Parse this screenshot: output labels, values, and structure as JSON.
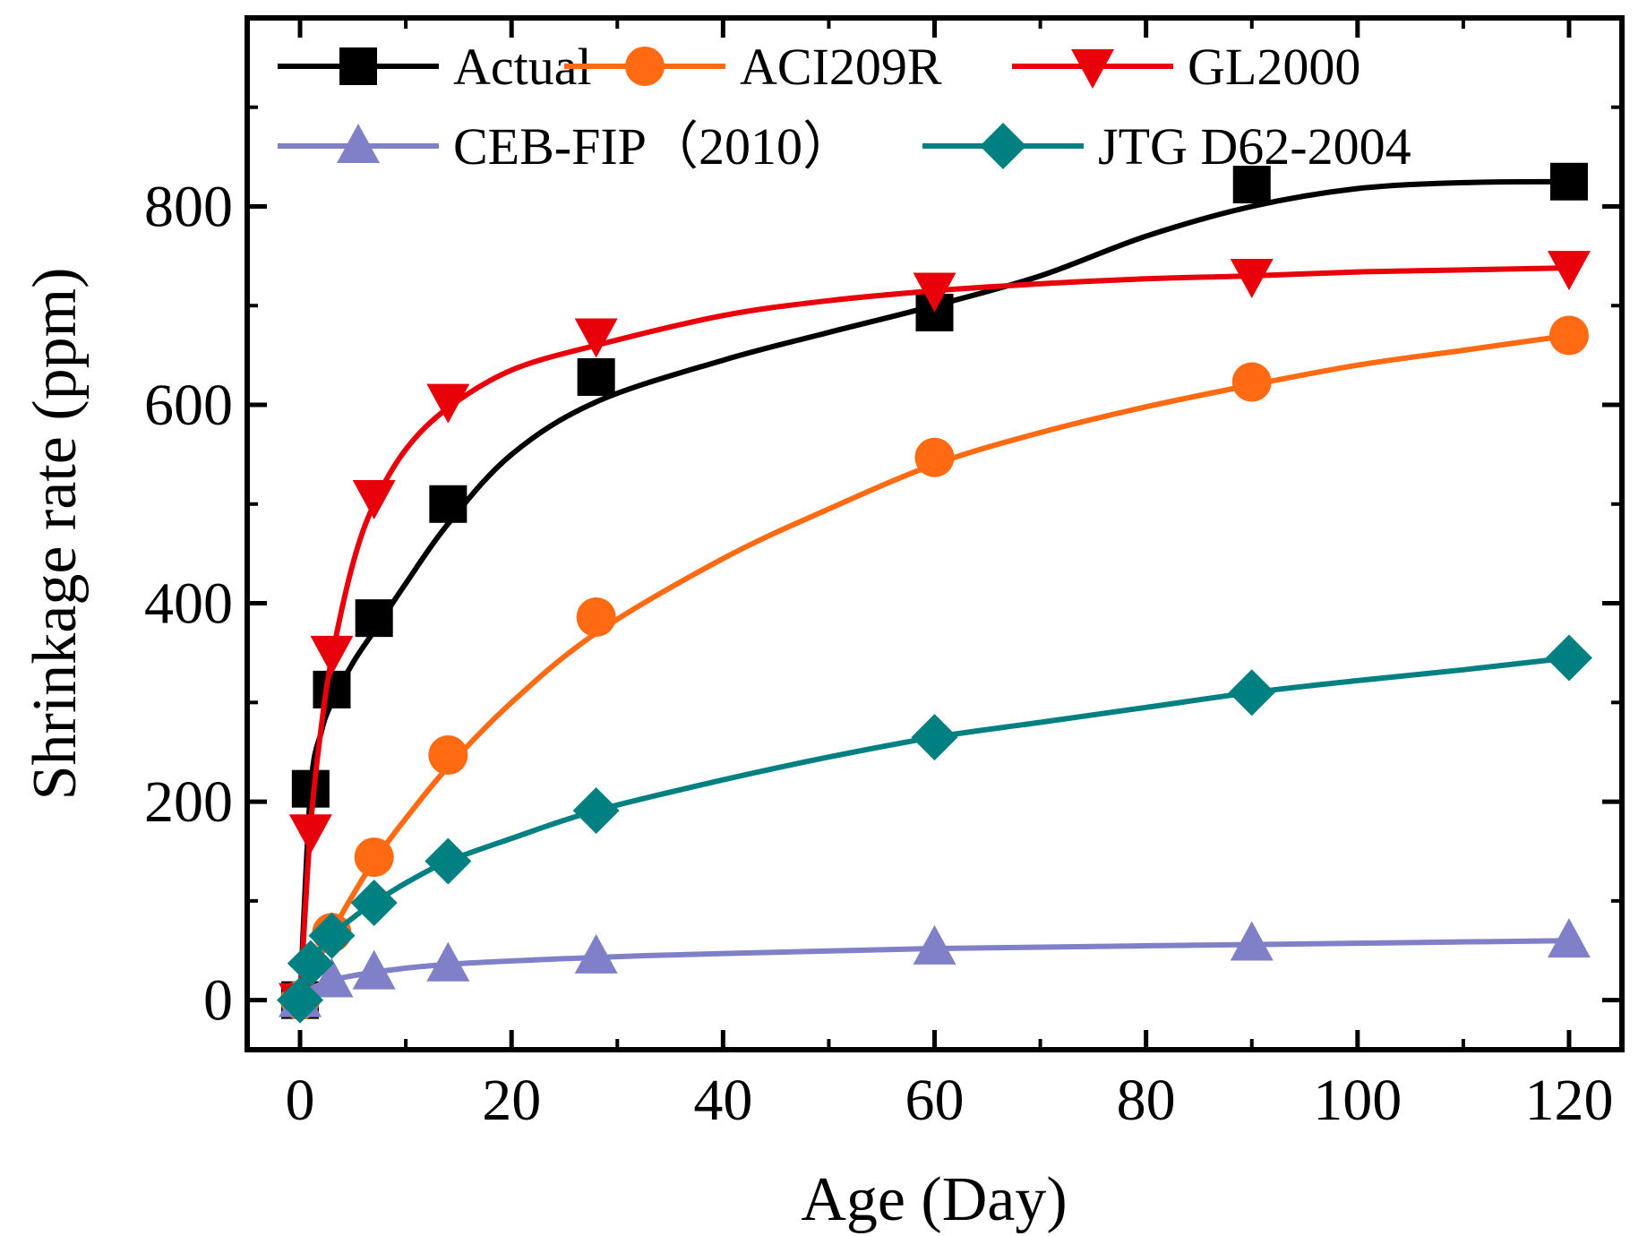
{
  "chart_data": {
    "type": "line",
    "xlabel": "Age (Day)",
    "ylabel": "Shrinkage rate (ppm)",
    "xlim": [
      -5,
      125
    ],
    "ylim": [
      -50,
      990
    ],
    "x_ticks": [
      0,
      20,
      40,
      60,
      80,
      100,
      120
    ],
    "y_ticks": [
      0,
      200,
      400,
      600,
      800
    ],
    "x_tick_labels": [
      "0",
      "20",
      "40",
      "60",
      "80",
      "100",
      "120"
    ],
    "y_tick_labels": [
      "0",
      "200",
      "400",
      "600",
      "800"
    ],
    "grid": false,
    "legend_position": "top-left",
    "series": [
      {
        "name": "Actual",
        "color": "#000000",
        "marker": "square",
        "points": [
          [
            0,
            0
          ],
          [
            1,
            213
          ],
          [
            3,
            313
          ],
          [
            7,
            385
          ],
          [
            14,
            500
          ],
          [
            28,
            628
          ],
          [
            60,
            693
          ],
          [
            90,
            822
          ],
          [
            120,
            825
          ]
        ],
        "curve": [
          [
            0,
            0
          ],
          [
            1,
            212
          ],
          [
            2,
            270
          ],
          [
            3,
            300
          ],
          [
            5,
            340
          ],
          [
            7,
            372
          ],
          [
            10,
            420
          ],
          [
            14,
            480
          ],
          [
            20,
            550
          ],
          [
            28,
            603
          ],
          [
            40,
            645
          ],
          [
            50,
            673
          ],
          [
            60,
            700
          ],
          [
            70,
            730
          ],
          [
            80,
            770
          ],
          [
            90,
            800
          ],
          [
            100,
            818
          ],
          [
            110,
            824
          ],
          [
            120,
            825
          ]
        ]
      },
      {
        "name": "ACI209R",
        "color": "#FF6A13",
        "marker": "circle",
        "points": [
          [
            0,
            0
          ],
          [
            3,
            68
          ],
          [
            7,
            144
          ],
          [
            14,
            247
          ],
          [
            28,
            386
          ],
          [
            60,
            547
          ],
          [
            90,
            623
          ],
          [
            120,
            670
          ]
        ],
        "curve": [
          [
            0,
            0
          ],
          [
            1,
            23
          ],
          [
            3,
            68
          ],
          [
            5,
            106
          ],
          [
            7,
            140
          ],
          [
            10,
            183
          ],
          [
            14,
            235
          ],
          [
            20,
            300
          ],
          [
            28,
            370
          ],
          [
            40,
            445
          ],
          [
            50,
            495
          ],
          [
            60,
            540
          ],
          [
            70,
            572
          ],
          [
            80,
            598
          ],
          [
            90,
            620
          ],
          [
            100,
            640
          ],
          [
            110,
            655
          ],
          [
            120,
            670
          ]
        ]
      },
      {
        "name": "GL2000",
        "color": "#E8000B",
        "marker": "triangle-down",
        "points": [
          [
            0,
            0
          ],
          [
            1,
            170
          ],
          [
            3,
            350
          ],
          [
            7,
            507
          ],
          [
            14,
            604
          ],
          [
            28,
            670
          ],
          [
            60,
            716
          ],
          [
            90,
            730
          ],
          [
            120,
            738
          ]
        ],
        "curve": [
          [
            0,
            0
          ],
          [
            1,
            175
          ],
          [
            2,
            275
          ],
          [
            3,
            345
          ],
          [
            5,
            440
          ],
          [
            7,
            500
          ],
          [
            10,
            555
          ],
          [
            14,
            597
          ],
          [
            20,
            635
          ],
          [
            28,
            660
          ],
          [
            40,
            690
          ],
          [
            50,
            705
          ],
          [
            60,
            715
          ],
          [
            70,
            722
          ],
          [
            80,
            727
          ],
          [
            90,
            730
          ],
          [
            100,
            734
          ],
          [
            110,
            736
          ],
          [
            120,
            738
          ]
        ]
      },
      {
        "name": "CEB-FIP（2010）",
        "color": "#8080C8",
        "marker": "triangle-up",
        "points": [
          [
            0,
            0
          ],
          [
            3,
            20
          ],
          [
            7,
            28
          ],
          [
            14,
            36
          ],
          [
            28,
            44
          ],
          [
            60,
            53
          ],
          [
            90,
            57
          ],
          [
            120,
            60
          ]
        ],
        "curve": [
          [
            0,
            0
          ],
          [
            1,
            11
          ],
          [
            3,
            20
          ],
          [
            7,
            28
          ],
          [
            14,
            36
          ],
          [
            28,
            43
          ],
          [
            40,
            47
          ],
          [
            60,
            52
          ],
          [
            90,
            56
          ],
          [
            120,
            60
          ]
        ]
      },
      {
        "name": "JTG D62-2004",
        "color": "#008080",
        "marker": "diamond",
        "points": [
          [
            0,
            0
          ],
          [
            1,
            37
          ],
          [
            3,
            65
          ],
          [
            7,
            98
          ],
          [
            14,
            140
          ],
          [
            28,
            191
          ],
          [
            60,
            265
          ],
          [
            90,
            310
          ],
          [
            120,
            345
          ]
        ],
        "curve": [
          [
            0,
            0
          ],
          [
            1,
            37
          ],
          [
            3,
            65
          ],
          [
            5,
            83
          ],
          [
            7,
            98
          ],
          [
            10,
            118
          ],
          [
            14,
            140
          ],
          [
            20,
            163
          ],
          [
            28,
            191
          ],
          [
            40,
            222
          ],
          [
            50,
            245
          ],
          [
            60,
            265
          ],
          [
            70,
            280
          ],
          [
            80,
            295
          ],
          [
            90,
            310
          ],
          [
            100,
            322
          ],
          [
            110,
            333
          ],
          [
            120,
            345
          ]
        ]
      }
    ]
  }
}
